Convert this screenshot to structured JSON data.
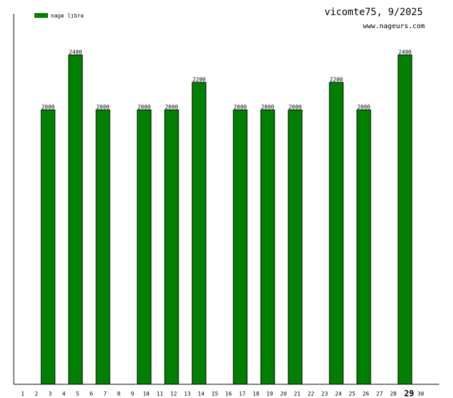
{
  "chart_data": {
    "type": "bar",
    "title": "vicomte75, 9/2025",
    "subtitle": "www.nageurs.com",
    "categories": [
      "1",
      "2",
      "3",
      "4",
      "5",
      "6",
      "7",
      "8",
      "9",
      "10",
      "11",
      "12",
      "13",
      "14",
      "15",
      "16",
      "17",
      "18",
      "19",
      "20",
      "21",
      "22",
      "23",
      "24",
      "25",
      "26",
      "27",
      "28",
      "29",
      "30"
    ],
    "series": [
      {
        "name": "nage libre",
        "color": "#008000",
        "values": [
          null,
          null,
          2000,
          null,
          2400,
          null,
          2000,
          null,
          null,
          2000,
          null,
          2000,
          null,
          2200,
          null,
          null,
          2000,
          null,
          2000,
          null,
          2000,
          null,
          null,
          2200,
          null,
          2000,
          null,
          null,
          2400,
          null
        ]
      }
    ],
    "highlight": "29",
    "ylim": [
      0,
      2700
    ],
    "legend": "top-left"
  }
}
